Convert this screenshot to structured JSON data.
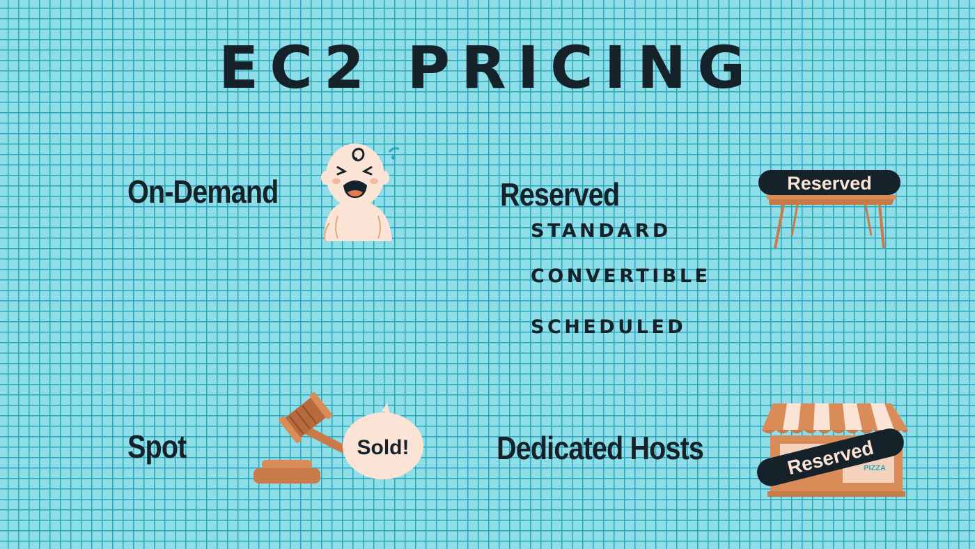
{
  "title": "EC2 PRICING",
  "options": {
    "on_demand": {
      "label": "On-Demand"
    },
    "reserved": {
      "label": "Reserved",
      "sign_label": "Reserved",
      "types": [
        "STANDARD",
        "CONVERTIBLE",
        "SCHEDULED"
      ]
    },
    "spot": {
      "label": "Spot",
      "bubble_text": "Sold!"
    },
    "dedicated_hosts": {
      "label": "Dedicated Hosts",
      "sign_label": "Reserved",
      "shop_sign": "PIZZA"
    }
  },
  "icons": {
    "on_demand": "crying-baby-icon",
    "reserved": "reserved-table-icon",
    "spot": "auction-gavel-icon",
    "dedicated_hosts": "reserved-shop-icon"
  },
  "colors": {
    "background": "#8fdde6",
    "grid": "#2aa7be",
    "text": "#15222a",
    "wood": "#c87a48",
    "sign": "#15222a"
  }
}
